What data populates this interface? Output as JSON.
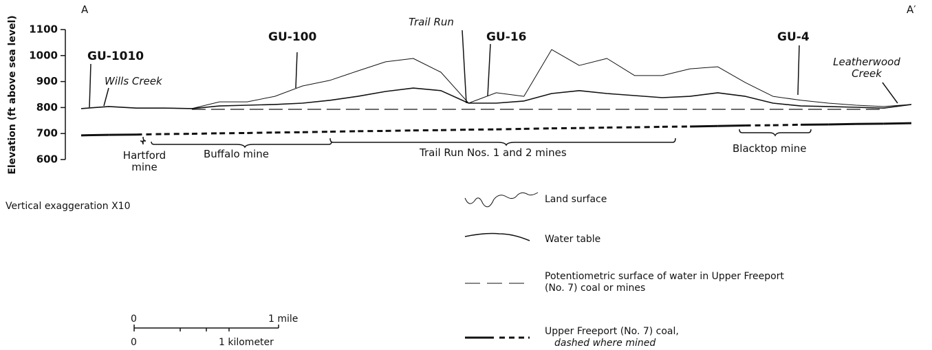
{
  "chart_data": {
    "type": "line",
    "ylabel": "Elevation (ft above sea level)",
    "ylim": [
      600,
      1100
    ],
    "yticks": [
      600,
      700,
      800,
      900,
      1000,
      1100
    ],
    "categories": [
      null,
      null,
      null,
      null,
      null,
      null,
      null,
      null,
      null,
      null,
      null,
      null,
      null,
      null,
      null,
      null,
      null,
      null,
      null,
      null,
      null,
      null,
      null,
      null,
      null,
      null,
      null,
      null,
      null,
      null,
      null
    ],
    "series": [
      {
        "name": "Land surface",
        "color": "#111",
        "style": "thin",
        "values": [
          796,
          804,
          798,
          798,
          796,
          822,
          822,
          843,
          883,
          905,
          941,
          976,
          989,
          936,
          817,
          857,
          843,
          1023,
          962,
          989,
          923,
          923,
          949,
          957,
          896,
          843,
          828,
          817,
          809,
          804,
          812
        ]
      },
      {
        "name": "Water table",
        "color": "#111",
        "style": "solid",
        "values": [
          796,
          804,
          798,
          798,
          796,
          806,
          809,
          812,
          817,
          828,
          843,
          862,
          875,
          865,
          817,
          817,
          825,
          854,
          865,
          854,
          846,
          838,
          843,
          857,
          843,
          817,
          806,
          804,
          801,
          798,
          812
        ]
      },
      {
        "name": "Potentiometric surface of water in Upper Freeport (No. 7) coal or mines",
        "color": "#111",
        "style": "dashed",
        "values": [
          null,
          null,
          null,
          null,
          793,
          793,
          793,
          793,
          793,
          793,
          793,
          793,
          793,
          793,
          793,
          793,
          793,
          793,
          793,
          793,
          793,
          793,
          793,
          793,
          793,
          793,
          793,
          793,
          793,
          793,
          null
        ]
      },
      {
        "name": "Upper Freeport (No. 7) coal,",
        "note": "dashed where mined",
        "color": "#111",
        "style": "thick",
        "values": [
          693,
          695,
          696,
          698,
          699,
          701,
          702,
          704,
          705,
          707,
          709,
          710,
          712,
          713,
          715,
          716,
          718,
          720,
          721,
          723,
          724,
          726,
          727,
          729,
          731,
          732,
          734,
          735,
          737,
          738,
          740
        ],
        "mined": [
          false,
          false,
          true,
          true,
          true,
          true,
          true,
          true,
          true,
          true,
          true,
          true,
          true,
          true,
          true,
          true,
          true,
          true,
          true,
          true,
          true,
          true,
          true,
          false,
          true,
          true,
          true,
          false,
          false,
          false,
          false
        ]
      }
    ],
    "annotations": [
      "A",
      "A′",
      "GU-1010",
      "Wills Creek",
      "GU-100",
      "Trail Run",
      "GU-16",
      "GU-4",
      "Leatherwood Creek",
      "Hartford mine",
      "Buffalo mine",
      "Trail Run Nos. 1 and 2 mines",
      "Blacktop mine",
      "Vertical exaggeration X10"
    ],
    "scale_bar": [
      "0",
      "1 mile",
      "0",
      "1 kilometer"
    ]
  }
}
